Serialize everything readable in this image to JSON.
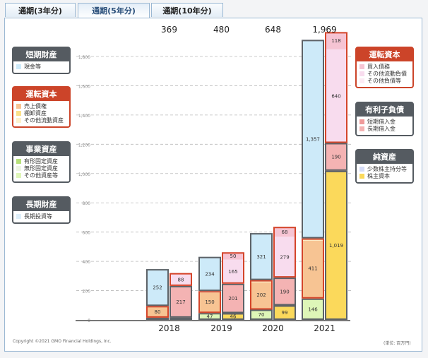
{
  "tabs": [
    {
      "label": "通期(3年分)"
    },
    {
      "label": "通期(5年分)",
      "active": true
    },
    {
      "label": "通期(10年分)"
    }
  ],
  "legend_left": [
    {
      "title": "短期財産",
      "style": "dark",
      "items": [
        {
          "label": "現金等",
          "color": "#cdeaf9"
        }
      ]
    },
    {
      "title": "運転資本",
      "style": "red",
      "items": [
        {
          "label": "売上債権",
          "color": "#f7c493"
        },
        {
          "label": "棚卸資産",
          "color": "#fbe08a"
        },
        {
          "label": "その他流動資産",
          "color": "#fdf1cc"
        }
      ]
    },
    {
      "title": "事業資産",
      "style": "dark",
      "items": [
        {
          "label": "有形固定資産",
          "color": "#b6e07a"
        },
        {
          "label": "無形固定資産",
          "color": "#eef6e4"
        },
        {
          "label": "その他資産等",
          "color": "#def6b8"
        }
      ]
    },
    {
      "title": "長期財産",
      "style": "dark",
      "items": [
        {
          "label": "長期投資等",
          "color": "#ddeef9"
        }
      ]
    }
  ],
  "legend_right": [
    {
      "title": "運転資本",
      "style": "red",
      "items": [
        {
          "label": "買入債務",
          "color": "#f6c4d3"
        },
        {
          "label": "その他流動負債",
          "color": "#f8dcee"
        },
        {
          "label": "その他負債等",
          "color": "#fcebf4"
        }
      ]
    },
    {
      "title": "有利子負債",
      "style": "dark",
      "items": [
        {
          "label": "短期借入金",
          "color": "#ef9a9a"
        },
        {
          "label": "長期借入金",
          "color": "#f4b3b3"
        }
      ]
    },
    {
      "title": "純資産",
      "style": "dark",
      "items": [
        {
          "label": "少数株主持分等",
          "color": "#d5dcf7"
        },
        {
          "label": "株主資本",
          "color": "#fbd95b"
        }
      ]
    }
  ],
  "footer": {
    "copyright": "Copyright ©2021 GMO Financial Holdings, Inc.",
    "unit": "(単位: 百万円)"
  },
  "chart_data": {
    "type": "bar",
    "stacked": true,
    "categories": [
      "2018",
      "2019",
      "2020",
      "2021"
    ],
    "totals": [
      "369",
      "480",
      "648",
      "1,969"
    ],
    "ylim": [
      0,
      1800
    ],
    "yticks": [
      0,
      200,
      400,
      600,
      800,
      1000,
      1200,
      1400,
      1600,
      1800
    ],
    "ytick_labels": [
      "0",
      "200",
      "400",
      "600",
      "800",
      "1,000",
      "1,200",
      "1,400",
      "1,600",
      "1,800"
    ],
    "grid": true,
    "assets": [
      [
        {
          "group": "事業資産",
          "value": 15,
          "label": "",
          "border": "dark",
          "parts": [
            {
              "value": 15,
              "color": "#def6b8"
            }
          ]
        },
        {
          "group": "運転資本",
          "value": 80,
          "label": "80",
          "border": "red",
          "parts": [
            {
              "value": 80,
              "color": "#f7c493"
            }
          ]
        },
        {
          "group": "短期財産",
          "value": 252,
          "label": "252",
          "border": "dark",
          "parts": [
            {
              "value": 252,
              "color": "#cdeaf9"
            }
          ]
        }
      ],
      [
        {
          "group": "事業資産",
          "value": 47,
          "label": "47",
          "border": "dark",
          "parts": [
            {
              "value": 47,
              "color": "#def6b8"
            }
          ]
        },
        {
          "group": "運転資本",
          "value": 150,
          "label": "150",
          "border": "red",
          "parts": [
            {
              "value": 140,
              "color": "#f7c493"
            },
            {
              "value": 10,
              "color": "#fdf1cc"
            }
          ]
        },
        {
          "group": "短期財産",
          "value": 234,
          "label": "234",
          "border": "dark",
          "parts": [
            {
              "value": 234,
              "color": "#cdeaf9"
            }
          ]
        }
      ],
      [
        {
          "group": "事業資産",
          "value": 70,
          "label": "70",
          "border": "dark",
          "parts": [
            {
              "value": 70,
              "color": "#def6b8"
            }
          ]
        },
        {
          "group": "運転資本",
          "value": 202,
          "label": "202",
          "border": "red",
          "parts": [
            {
              "value": 187,
              "color": "#f7c493"
            },
            {
              "value": 15,
              "color": "#fdf1cc"
            }
          ]
        },
        {
          "group": "短期財産",
          "value": 321,
          "label": "321",
          "border": "dark",
          "parts": [
            {
              "value": 321,
              "color": "#cdeaf9"
            }
          ]
        }
      ],
      [
        {
          "group": "事業資産",
          "value": 146,
          "label": "146",
          "border": "dark",
          "parts": [
            {
              "value": 141,
              "color": "#def6b8"
            },
            {
              "value": 5,
              "color": "#b6e07a"
            }
          ]
        },
        {
          "group": "運転資本",
          "value": 411,
          "label": "411",
          "border": "red",
          "parts": [
            {
              "value": 396,
              "color": "#f7c493"
            },
            {
              "value": 15,
              "color": "#fdf1cc"
            }
          ]
        },
        {
          "group": "短期財産",
          "value": 1357,
          "label": "1,357",
          "border": "dark",
          "parts": [
            {
              "value": 1357,
              "color": "#cdeaf9"
            }
          ]
        }
      ]
    ],
    "liabilities": [
      [
        {
          "group": "純資産",
          "value": 15,
          "label": "",
          "border": "dark",
          "parts": [
            {
              "value": 15,
              "color": "#fbd95b"
            }
          ]
        },
        {
          "group": "有利子負債",
          "value": 217,
          "label": "217",
          "border": "dark",
          "parts": [
            {
              "value": 217,
              "color": "#f4b3b3"
            }
          ]
        },
        {
          "group": "運転資本",
          "value": 88,
          "label": "88",
          "border": "red",
          "parts": [
            {
              "value": 78,
              "color": "#f8dcee"
            },
            {
              "value": 10,
              "color": "#f6c4d3"
            }
          ]
        }
      ],
      [
        {
          "group": "純資産",
          "value": 46,
          "label": "46",
          "border": "dark",
          "parts": [
            {
              "value": 46,
              "color": "#fbd95b"
            }
          ]
        },
        {
          "group": "有利子負債",
          "value": 201,
          "label": "201",
          "border": "dark",
          "parts": [
            {
              "value": 201,
              "color": "#f4b3b3"
            }
          ]
        },
        {
          "group": "運転資本",
          "value": 215,
          "label": "",
          "border": "red",
          "parts": [
            {
              "value": 165,
              "color": "#f8dcee",
              "label": "165"
            },
            {
              "value": 50,
              "color": "#f6c4d3",
              "label": "50"
            }
          ]
        }
      ],
      [
        {
          "group": "純資産",
          "value": 99,
          "label": "99",
          "border": "dark",
          "parts": [
            {
              "value": 99,
              "color": "#fbd95b"
            }
          ]
        },
        {
          "group": "有利子負債",
          "value": 190,
          "label": "190",
          "border": "dark",
          "parts": [
            {
              "value": 190,
              "color": "#f4b3b3"
            }
          ]
        },
        {
          "group": "運転資本",
          "value": 347,
          "label": "",
          "border": "red",
          "parts": [
            {
              "value": 279,
              "color": "#f8dcee",
              "label": "279"
            },
            {
              "value": 68,
              "color": "#f6c4d3",
              "label": "68"
            }
          ]
        }
      ],
      [
        {
          "group": "純資産",
          "value": 1019,
          "label": "1,019",
          "border": "dark",
          "parts": [
            {
              "value": 1019,
              "color": "#fbd95b"
            }
          ]
        },
        {
          "group": "有利子負債",
          "value": 190,
          "label": "190",
          "border": "dark",
          "parts": [
            {
              "value": 190,
              "color": "#f4b3b3"
            }
          ]
        },
        {
          "group": "運転資本",
          "value": 758,
          "label": "",
          "border": "red",
          "parts": [
            {
              "value": 640,
              "color": "#f8dcee",
              "label": "640"
            },
            {
              "value": 118,
              "color": "#f6c4d3",
              "label": "118"
            }
          ]
        }
      ]
    ]
  }
}
